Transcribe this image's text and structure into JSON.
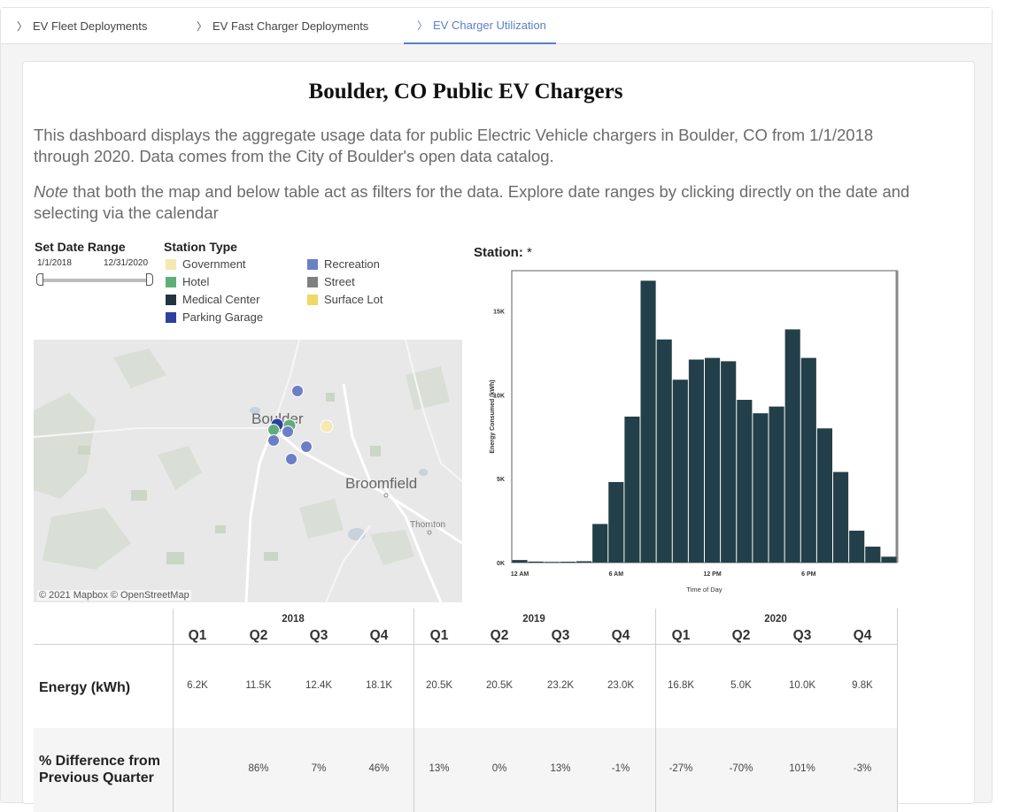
{
  "tabs": [
    {
      "label": "EV Fleet Deployments",
      "active": false
    },
    {
      "label": "EV Fast Charger Deployments",
      "active": false
    },
    {
      "label": "EV Charger Utilization",
      "active": true
    }
  ],
  "page": {
    "title": "Boulder, CO Public EV Chargers",
    "description": "This dashboard displays the aggregate usage data for public Electric Vehicle chargers in Boulder, CO from 1/1/2018 through 2020. Data comes from the City of Boulder's open data catalog.",
    "note_italic": "Note",
    "note_rest": " that both the map and below table act as filters for the data. Explore date ranges by clicking directly on the date and selecting via the calendar"
  },
  "date_range": {
    "label": "Set Date Range",
    "start": "1/1/2018",
    "end": "12/31/2020"
  },
  "station_type": {
    "label": "Station Type",
    "items": [
      {
        "name": "Government",
        "color": "#f5e8b0"
      },
      {
        "name": "Hotel",
        "color": "#5fae7a"
      },
      {
        "name": "Medical Center",
        "color": "#1f3640"
      },
      {
        "name": "Parking Garage",
        "color": "#2e3f9e"
      },
      {
        "name": "Recreation",
        "color": "#6a7fc6"
      },
      {
        "name": "Street",
        "color": "#7f7f7f"
      },
      {
        "name": "Surface Lot",
        "color": "#efd863"
      }
    ]
  },
  "map": {
    "labels": {
      "boulder": "Boulder",
      "broomfield": "Broomfield",
      "thornton": "Thornton"
    },
    "attribution": "© 2021 Mapbox  © OpenStreetMap"
  },
  "station_filter": {
    "label": "Station:",
    "value": "*"
  },
  "chart_data": {
    "type": "bar",
    "xlabel": "Time of Day",
    "ylabel": "Energy Consumed (kWh)",
    "x_tick_labels": [
      "12 AM",
      "6 AM",
      "12 PM",
      "6 PM"
    ],
    "y_tick_labels": [
      "0K",
      "5K",
      "10K",
      "15K"
    ],
    "categories": [
      0,
      1,
      2,
      3,
      4,
      5,
      6,
      7,
      8,
      9,
      10,
      11,
      12,
      13,
      14,
      15,
      16,
      17,
      18,
      19,
      20,
      21,
      22,
      23
    ],
    "values": [
      150,
      60,
      40,
      50,
      80,
      2300,
      4800,
      8700,
      16800,
      13300,
      10900,
      12100,
      12200,
      12000,
      9700,
      8900,
      9300,
      13900,
      12200,
      8000,
      5400,
      1900,
      950,
      350
    ],
    "ylim": [
      0,
      17400
    ],
    "bar_color": "#233f49"
  },
  "table": {
    "years": [
      "2018",
      "2019",
      "2020"
    ],
    "quarters": [
      "Q1",
      "Q2",
      "Q3",
      "Q4",
      "Q1",
      "Q2",
      "Q3",
      "Q4",
      "Q1",
      "Q2",
      "Q3",
      "Q4"
    ],
    "rows": [
      {
        "label": "Energy (kWh)",
        "values": [
          "6.2K",
          "11.5K",
          "12.4K",
          "18.1K",
          "20.5K",
          "20.5K",
          "23.2K",
          "23.0K",
          "16.8K",
          "5.0K",
          "10.0K",
          "9.8K"
        ]
      },
      {
        "label": "% Difference from Previous Quarter",
        "values": [
          "",
          "86%",
          "7%",
          "46%",
          "13%",
          "0%",
          "13%",
          "-1%",
          "-27%",
          "-70%",
          "101%",
          "-3%"
        ]
      }
    ]
  }
}
